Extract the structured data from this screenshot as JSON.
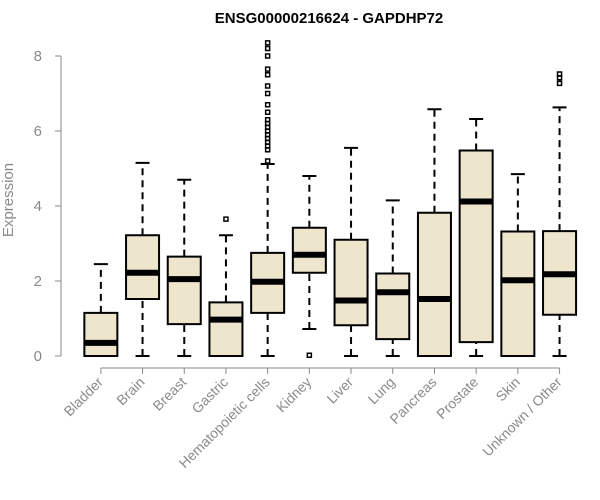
{
  "chart_data": {
    "type": "boxplot",
    "title": "ENSG00000216624 - GAPDHP72",
    "ylabel": "Expression",
    "ylim": [
      0,
      8.5
    ],
    "yticks": [
      "0",
      "2",
      "4",
      "6",
      "8"
    ],
    "categories": [
      "Bladder",
      "Brain",
      "Breast",
      "Gastric",
      "Hematopoietic cells",
      "Kidney",
      "Liver",
      "Lung",
      "Pancreas",
      "Prostate",
      "Skin",
      "Unknown / Other"
    ],
    "boxes": [
      {
        "min": 0,
        "q1": 0,
        "median": 0.35,
        "q3": 1.15,
        "max": 2.45,
        "outliers": []
      },
      {
        "min": 0,
        "q1": 1.52,
        "median": 2.22,
        "q3": 3.22,
        "max": 5.15,
        "outliers": []
      },
      {
        "min": 0,
        "q1": 0.85,
        "median": 2.05,
        "q3": 2.65,
        "max": 4.7,
        "outliers": []
      },
      {
        "min": 0,
        "q1": 0,
        "median": 0.97,
        "q3": 1.43,
        "max": 3.22,
        "outliers": [
          3.65
        ]
      },
      {
        "min": 0,
        "q1": 1.15,
        "median": 1.98,
        "q3": 2.75,
        "max": 5.12,
        "outliers": [
          5.2,
          5.5,
          5.6,
          5.7,
          5.8,
          5.9,
          6.0,
          6.1,
          6.2,
          6.3,
          6.5,
          6.7,
          7.0,
          7.2,
          7.5,
          7.65,
          8.0,
          8.2,
          8.35
        ]
      },
      {
        "min": 0.72,
        "q1": 2.22,
        "median": 2.7,
        "q3": 3.42,
        "max": 4.8,
        "outliers": [
          0.02
        ]
      },
      {
        "min": 0,
        "q1": 0.82,
        "median": 1.48,
        "q3": 3.1,
        "max": 5.55,
        "outliers": []
      },
      {
        "min": 0,
        "q1": 0.45,
        "median": 1.7,
        "q3": 2.2,
        "max": 4.15,
        "outliers": []
      },
      {
        "min": 0,
        "q1": 0,
        "median": 1.52,
        "q3": 3.82,
        "max": 6.58,
        "outliers": []
      },
      {
        "min": 0,
        "q1": 0.37,
        "median": 4.12,
        "q3": 5.48,
        "max": 6.32,
        "outliers": []
      },
      {
        "min": 0,
        "q1": 0,
        "median": 2.02,
        "q3": 3.32,
        "max": 4.85,
        "outliers": []
      },
      {
        "min": 0,
        "q1": 1.1,
        "median": 2.18,
        "q3": 3.33,
        "max": 6.63,
        "outliers": [
          7.27,
          7.42,
          7.52
        ]
      }
    ],
    "box_fill": "#ede6cc",
    "grid": false,
    "legend": "none"
  }
}
